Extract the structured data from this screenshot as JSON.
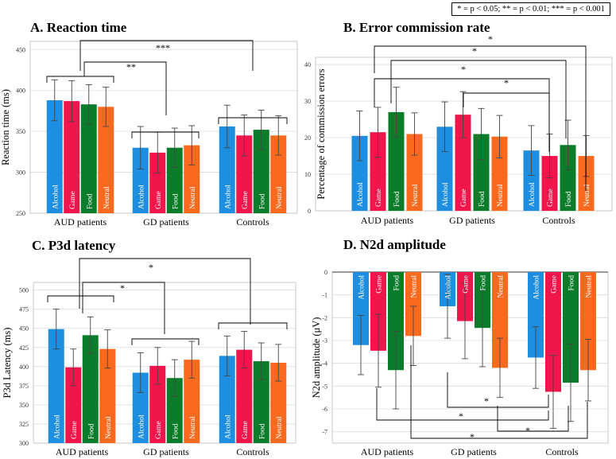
{
  "figure_legend": "* = p < 0.05; ** = p < 0.01; *** = p < 0.001",
  "colors": {
    "Alcohol": "#1e8fe0",
    "Game": "#f0154a",
    "Food": "#0b7d2a",
    "Neutral": "#fa6a1e"
  },
  "chart_data": [
    {
      "id": "A",
      "type": "bar",
      "title": "A. Reaction time",
      "ylabel": "Reaction time (ms)",
      "ylim": [
        250,
        460
      ],
      "yticks": [
        250,
        300,
        350,
        400,
        450
      ],
      "groups": [
        "AUD patients",
        "GD patients",
        "Controls"
      ],
      "conditions": [
        "Alcohol",
        "Game",
        "Food",
        "Neutral"
      ],
      "values": [
        [
          388,
          387,
          383,
          380
        ],
        [
          330,
          324,
          330,
          333
        ],
        [
          356,
          345,
          352,
          345
        ]
      ],
      "errors": [
        [
          25,
          25,
          24,
          24
        ],
        [
          26,
          25,
          24,
          24
        ],
        [
          26,
          25,
          24,
          24
        ]
      ],
      "significance": [
        {
          "label": "***",
          "from": "AUD patients",
          "to": "Controls"
        },
        {
          "label": "**",
          "from": "AUD patients",
          "to": "GD patients"
        }
      ]
    },
    {
      "id": "B",
      "type": "bar",
      "title": "B. Error commission rate",
      "ylabel": "Percentage of commission errors",
      "ylim": [
        0,
        42
      ],
      "yticks": [
        0,
        10,
        20,
        30,
        40
      ],
      "groups": [
        "AUD patients",
        "GD patients",
        "Controls"
      ],
      "conditions": [
        "Alcohol",
        "Game",
        "Food",
        "Neutral"
      ],
      "values": [
        [
          20.5,
          21.5,
          27,
          21
        ],
        [
          23,
          26.3,
          21,
          20.3
        ],
        [
          16.5,
          15,
          18,
          15
        ]
      ],
      "errors": [
        [
          6.8,
          6.8,
          6.8,
          5.8
        ],
        [
          6.8,
          6.3,
          7,
          5.8
        ],
        [
          6.8,
          6,
          6.8,
          5.6
        ]
      ],
      "significance": [
        {
          "label": "*",
          "from": "AUD patients Game",
          "to": "Controls Neutral"
        },
        {
          "label": "*",
          "from": "AUD patients Food",
          "to": "Controls Food"
        },
        {
          "label": "*",
          "from": "AUD patients Game",
          "to": "Controls Game"
        },
        {
          "label": "*",
          "from": "GD patients Game",
          "to": "Controls Game"
        }
      ]
    },
    {
      "id": "C",
      "type": "bar",
      "title": "C. P3d latency",
      "ylabel": "P3d Latency  (ms)",
      "ylim": [
        300,
        510
      ],
      "yticks": [
        300,
        325,
        350,
        375,
        400,
        425,
        450,
        475,
        500
      ],
      "groups": [
        "AUD patients",
        "GD patients",
        "Controls"
      ],
      "conditions": [
        "Alcohol",
        "Game",
        "Food",
        "Neutral"
      ],
      "values": [
        [
          449,
          399,
          441,
          423
        ],
        [
          392,
          401,
          385,
          409
        ],
        [
          414,
          422,
          407,
          405
        ]
      ],
      "errors": [
        [
          26,
          24,
          24,
          25
        ],
        [
          26,
          24,
          24,
          24
        ],
        [
          26,
          24,
          24,
          24
        ]
      ],
      "significance": [
        {
          "label": "*",
          "from": "AUD patients",
          "to": "Controls"
        },
        {
          "label": "*",
          "from": "AUD patients",
          "to": "GD patients"
        }
      ]
    },
    {
      "id": "D",
      "type": "bar",
      "title": "D. N2d amplitude",
      "ylabel": "N2d amplitude (μV)",
      "ylim": [
        -7.5,
        0
      ],
      "yticks": [
        0,
        -1,
        -2,
        -3,
        -4,
        -5,
        -6,
        -7
      ],
      "groups": [
        "AUD patients",
        "GD patients",
        "Controls"
      ],
      "conditions": [
        "Alcohol",
        "Game",
        "Food",
        "Neutral"
      ],
      "values": [
        [
          -3.2,
          -3.45,
          -4.3,
          -2.8
        ],
        [
          -1.5,
          -2.15,
          -2.45,
          -4.2
        ],
        [
          -3.75,
          -5.25,
          -4.85,
          -4.3
        ]
      ],
      "errors": [
        [
          1.3,
          1.6,
          1.7,
          1.3
        ],
        [
          1.4,
          1.65,
          1.7,
          1.3
        ],
        [
          1.35,
          1.6,
          1.7,
          1.35
        ]
      ],
      "significance": [
        {
          "label": "*",
          "from": "GD patients Alcohol",
          "to": "Controls Alcohol"
        },
        {
          "label": "*",
          "from": "AUD patients Game",
          "to": "Controls Game"
        },
        {
          "label": "*",
          "from": "GD patients Neutral",
          "to": "Controls Food"
        },
        {
          "label": "*",
          "from": "AUD patients Neutral",
          "to": "Controls Neutral"
        }
      ]
    }
  ]
}
